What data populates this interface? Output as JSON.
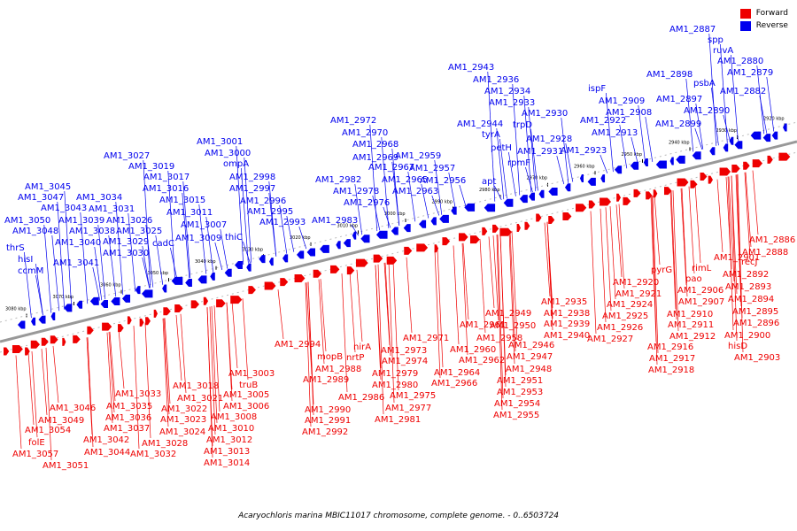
{
  "legend": {
    "forward": "Forward",
    "reverse": "Reverse"
  },
  "colors": {
    "forward": "#ee0000",
    "reverse": "#0000ee",
    "backbone": "#888888"
  },
  "caption": "Acaryochloris marina MBIC11017 chromosome, complete genome. - 0..6503724",
  "scale_labels": [
    "3080 kbp",
    "3070 kbp",
    "3060 kbp",
    "3050 kbp",
    "3040 kbp",
    "3030 kbp",
    "3020 kbp",
    "3010 kbp",
    "3000 kbp",
    "2990 kbp",
    "2980 kbp",
    "2970 kbp",
    "2960 kbp",
    "2950 kbp",
    "2940 kbp",
    "2930 kbp",
    "2920 kbp"
  ],
  "reverse_labels": [
    "thrS",
    "hisI",
    "ccmM",
    "AM1_3050",
    "AM1_3048",
    "AM1_3047",
    "AM1_3045",
    "AM1_3043",
    "AM1_3040",
    "AM1_3041",
    "AM1_3039",
    "AM1_3038",
    "AM1_3034",
    "AM1_3031",
    "AM1_3026",
    "AM1_3029",
    "AM1_3030",
    "AM1_3025",
    "AM1_3027",
    "AM1_3019",
    "AM1_3017",
    "AM1_3016",
    "AM1_3015",
    "AM1_3011",
    "cadC",
    "AM1_3007",
    "AM1_3009",
    "AM1_3001",
    "AM1_3000",
    "ompA",
    "AM1_2998",
    "AM1_2997",
    "thiC",
    "AM1_2996",
    "AM1_2995",
    "AM1_2993",
    "AM1_2972",
    "AM1_2970",
    "AM1_2968",
    "AM1_2969",
    "AM1_2967",
    "AM1_2965",
    "AM1_2982",
    "AM1_2978",
    "AM1_2976",
    "AM1_2963",
    "AM1_2983",
    "AM1_2959",
    "AM1_2957",
    "AM1_2956",
    "AM1_2943",
    "AM1_2936",
    "AM1_2934",
    "AM1_2933",
    "AM1_2930",
    "AM1_2944",
    "tyrA",
    "trpD",
    "petH",
    "AM1_2928",
    "AM1_2931",
    "rpmF",
    "apt",
    "AM1_2922",
    "AM1_2923",
    "ispF",
    "AM1_2909",
    "AM1_2908",
    "AM1_2913",
    "AM1_2898",
    "AM1_2897",
    "AM1_2899",
    "psbA",
    "AM1_2890",
    "AM1_2887",
    "spp",
    "ruvA",
    "AM1_2880",
    "AM1_2879",
    "AM1_2882"
  ],
  "forward_labels": [
    "AM1_3046",
    "AM1_3049",
    "AM1_3054",
    "folE",
    "AM1_3057",
    "AM1_3051",
    "AM1_3042",
    "AM1_3044",
    "AM1_3033",
    "AM1_3035",
    "AM1_3036",
    "AM1_3037",
    "AM1_3028",
    "AM1_3032",
    "AM1_3018",
    "AM1_3021",
    "AM1_3022",
    "AM1_3023",
    "AM1_3024",
    "AM1_3003",
    "truB",
    "AM1_3005",
    "AM1_3006",
    "AM1_3008",
    "AM1_3010",
    "AM1_3012",
    "AM1_3013",
    "AM1_3014",
    "AM1_2994",
    "mopB",
    "AM1_2988",
    "AM1_2989",
    "AM1_2986",
    "AM1_2990",
    "AM1_2991",
    "AM1_2992",
    "nirA",
    "nrtP",
    "AM1_2971",
    "AM1_2973",
    "AM1_2974",
    "AM1_2979",
    "AM1_2980",
    "AM1_2975",
    "AM1_2977",
    "AM1_2981",
    "AM1_2961",
    "AM1_2958",
    "AM1_2960",
    "AM1_2962",
    "AM1_2964",
    "AM1_2966",
    "AM1_2949",
    "AM1_2950",
    "AM1_2946",
    "AM1_2947",
    "AM1_2948",
    "AM1_2951",
    "AM1_2953",
    "AM1_2954",
    "AM1_2955",
    "AM1_2935",
    "AM1_2938",
    "AM1_2939",
    "AM1_2940",
    "AM1_2920",
    "AM1_2921",
    "AM1_2924",
    "AM1_2925",
    "AM1_2926",
    "AM1_2927",
    "pyrG",
    "pao",
    "AM1_2906",
    "AM1_2907",
    "AM1_2910",
    "AM1_2911",
    "AM1_2912",
    "AM1_2916",
    "AM1_2917",
    "AM1_2918",
    "rimL",
    "AM1_2901",
    "recJ",
    "AM1_2892",
    "AM1_2893",
    "AM1_2894",
    "AM1_2895",
    "AM1_2896",
    "AM1_2900",
    "hisD",
    "AM1_2903",
    "AM1_2886",
    "AM1_2888"
  ]
}
